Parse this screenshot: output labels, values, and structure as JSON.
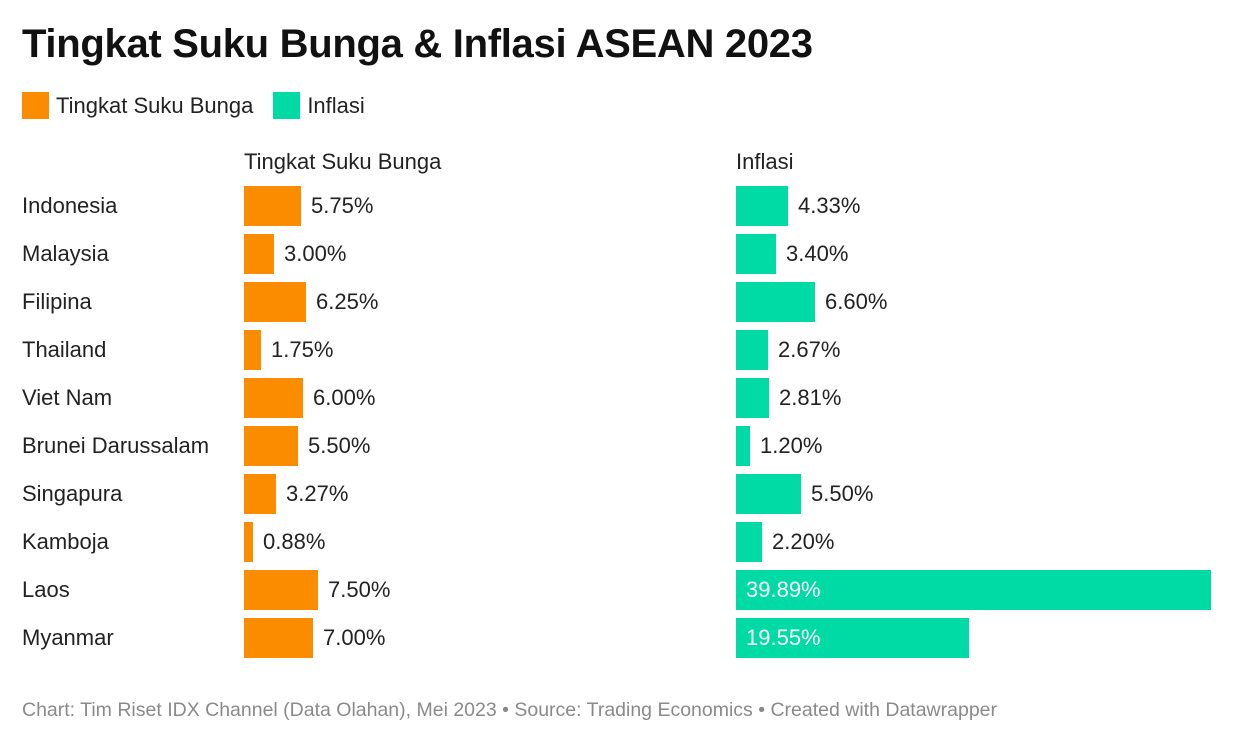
{
  "colors": {
    "rate": "#FB8C00",
    "inflation": "#00DBA5"
  },
  "legend": {
    "rate_label": "Tingkat Suku Bunga",
    "inflation_label": "Inflasi"
  },
  "footer": {
    "text": "Chart: Tim Riset IDX Channel (Data Olahan), Mei 2023 • Source: Trading Economics • Created with Datawrapper"
  },
  "chart_data": {
    "type": "bar",
    "orientation": "horizontal",
    "title": "Tingkat Suku Bunga & Inflasi ASEAN 2023",
    "categories": [
      "Indonesia",
      "Malaysia",
      "Filipina",
      "Thailand",
      "Viet Nam",
      "Brunei Darussalam",
      "Singapura",
      "Kamboja",
      "Laos",
      "Myanmar"
    ],
    "series": [
      {
        "name": "Tingkat Suku Bunga",
        "values": [
          5.75,
          3.0,
          6.25,
          1.75,
          6.0,
          5.5,
          3.27,
          0.88,
          7.5,
          7.0
        ],
        "labels": [
          "5.75%",
          "3.00%",
          "6.25%",
          "1.75%",
          "6.00%",
          "5.50%",
          "3.27%",
          "0.88%",
          "7.50%",
          "7.00%"
        ]
      },
      {
        "name": "Inflasi",
        "values": [
          4.33,
          3.4,
          6.6,
          2.67,
          2.81,
          1.2,
          5.5,
          2.2,
          39.89,
          19.55
        ],
        "labels": [
          "4.33%",
          "3.40%",
          "6.60%",
          "2.67%",
          "2.81%",
          "1.20%",
          "5.50%",
          "2.20%",
          "39.89%",
          "19.55%"
        ]
      }
    ],
    "xlim": [
      0,
      40
    ],
    "grid": false,
    "legend_position": "top-left"
  }
}
